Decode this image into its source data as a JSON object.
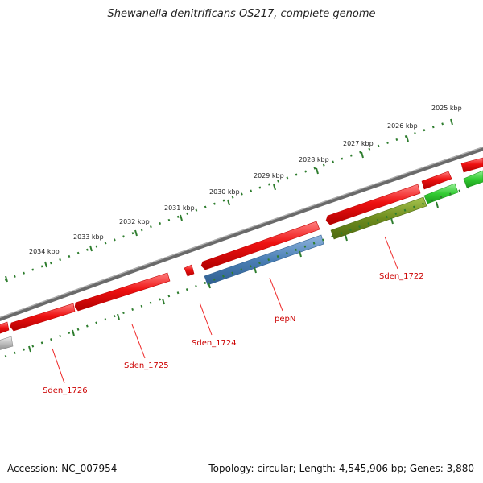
{
  "title": "Shewanella denitrificans OS217, complete genome",
  "footer": {
    "accession": "Accession: NC_007954",
    "topology": "Topology: circular; Length: 4,545,906 bp; Genes: 3,880"
  },
  "ticks": [
    "2025 kbp",
    "2026 kbp",
    "2027 kbp",
    "2028 kbp",
    "2029 kbp",
    "2030 kbp",
    "2031 kbp",
    "2032 kbp",
    "2033 kbp",
    "2034 kbp"
  ],
  "gene_labels": [
    "Sden_1722",
    "pepN",
    "Sden_1724",
    "Sden_1725",
    "Sden_1726"
  ],
  "colors": {
    "backbone": "#777777",
    "cds_red": "#ee1111",
    "pepN_blue": "#4a7fb5",
    "olive": "#6e8c1e",
    "green": "#33cc33",
    "grey": "#bbbbbb",
    "tick_green": "#2e7d2e",
    "label_red": "#cc0000"
  }
}
